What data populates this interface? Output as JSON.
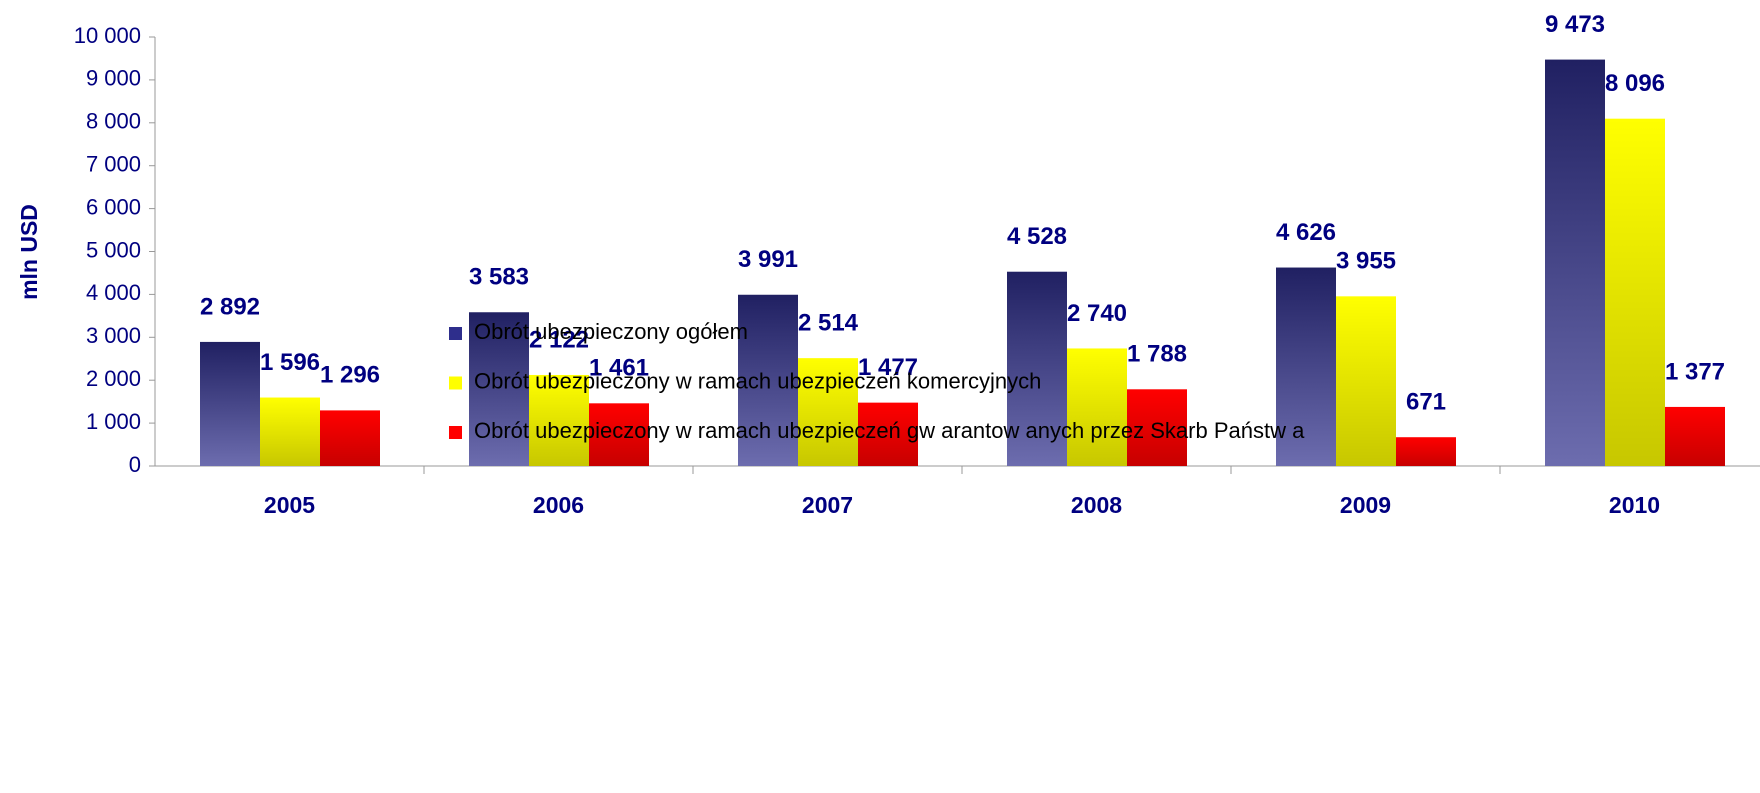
{
  "chart_data": {
    "type": "bar",
    "y_label": "mln USD",
    "categories": [
      "2005",
      "2006",
      "2007",
      "2008",
      "2009",
      "2010"
    ],
    "series": [
      {
        "name": "Obrót ubezpieczony ogółem",
        "color": "#2e2e8c",
        "values": [
          2892,
          3583,
          3991,
          4528,
          4626,
          9473
        ],
        "value_labels": [
          "2 892",
          "3 583",
          "3 991",
          "4 528",
          "4 626",
          "9 473"
        ]
      },
      {
        "name": "Obrót ubezpieczony w  ramach ubezpieczeń komercyjnych",
        "color": "#ffff00",
        "values": [
          1596,
          2122,
          2514,
          2740,
          3955,
          8096
        ],
        "value_labels": [
          "1 596",
          "2 122",
          "2 514",
          "2 740",
          "3 955",
          "8 096"
        ]
      },
      {
        "name": "Obrót ubezpieczony w  ramach ubezpieczeń gw arantow anych przez Skarb Państw a",
        "color": "#ff0000",
        "values": [
          1296,
          1461,
          1477,
          1788,
          671,
          1377
        ],
        "value_labels": [
          "1 296",
          "1 461",
          "1 477",
          "1 788",
          "671",
          "1 377"
        ]
      }
    ],
    "ylim": [
      0,
      10000
    ],
    "yticks": [
      0,
      {
        "value": 1000,
        "label": "1 000"
      },
      {
        "value": 2000,
        "label": "2 000"
      },
      {
        "value": 3000,
        "label": "3 000"
      },
      {
        "value": 4000,
        "label": "4 000"
      },
      {
        "value": 5000,
        "label": "5 000"
      },
      {
        "value": 6000,
        "label": "6 000"
      },
      {
        "value": 7000,
        "label": "7 000"
      },
      {
        "value": 8000,
        "label": "8 000"
      },
      {
        "value": 9000,
        "label": "9 000"
      },
      {
        "value": 10000,
        "label": "10 000"
      }
    ],
    "grid": false
  }
}
